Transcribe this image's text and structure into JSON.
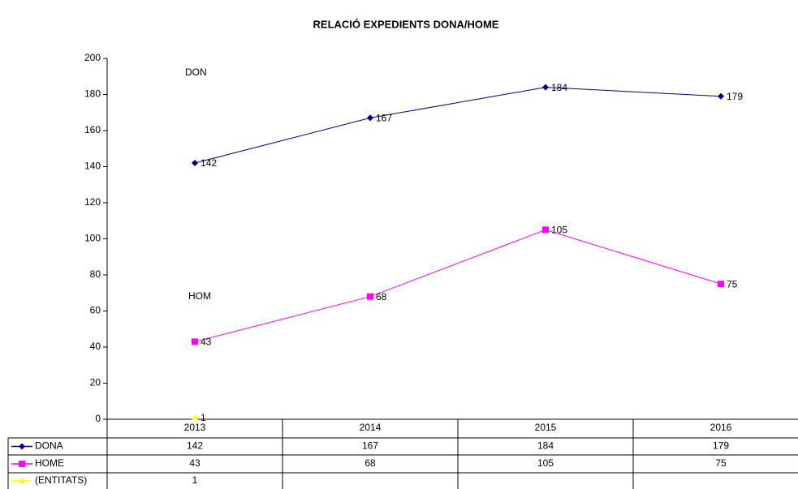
{
  "chart_data": {
    "type": "line",
    "title": "RELACIÓ EXPEDIENTS DONA/HOME",
    "annotations": [
      "DON",
      "HOM"
    ],
    "categories": [
      "2013",
      "2014",
      "2015",
      "2016"
    ],
    "series": [
      {
        "name": "DONA",
        "color": "#000080",
        "marker": "diamond",
        "values": [
          142,
          167,
          184,
          179
        ]
      },
      {
        "name": "HOME",
        "color": "#ff00ff",
        "marker": "square",
        "values": [
          43,
          68,
          105,
          75
        ]
      },
      {
        "name": "(ENTITATS)",
        "color": "#ffff00",
        "marker": "triangle",
        "values": [
          1,
          null,
          null,
          null
        ]
      }
    ],
    "ylim": [
      0,
      200
    ],
    "yticks": [
      0,
      20,
      40,
      60,
      80,
      100,
      120,
      140,
      160,
      180,
      200
    ],
    "grid": false,
    "legend": "table"
  }
}
